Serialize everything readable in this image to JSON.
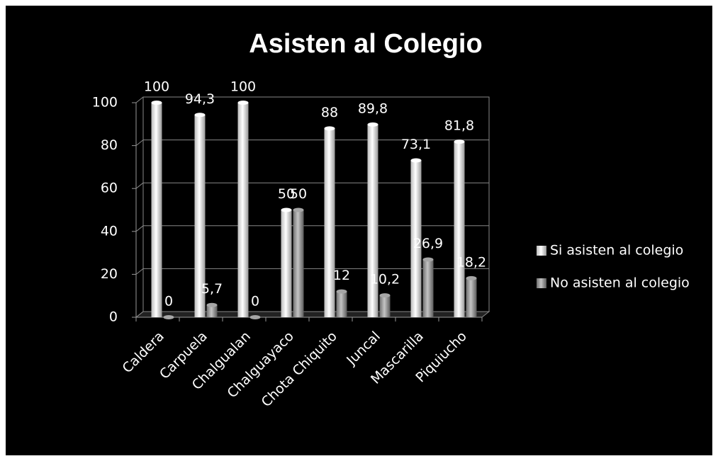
{
  "chart_data": {
    "type": "bar",
    "title": "Asisten al Colegio",
    "categories": [
      "Caldera",
      "Carpuela",
      "Chalgualan",
      "Chalguayaco",
      "Chota Chiquito",
      "Juncal",
      "Mascarilla",
      "Piquiucho"
    ],
    "series": [
      {
        "name": "Si asisten al colegio",
        "color": "#ffffff",
        "values": [
          100,
          94.3,
          100,
          50,
          88,
          89.8,
          73.1,
          81.8
        ],
        "value_labels": [
          "100",
          "94,3",
          "100",
          "50",
          "88",
          "89,8",
          "73,1",
          "81,8"
        ]
      },
      {
        "name": "No asisten al colegio",
        "color": "#a6a6a6",
        "values": [
          0,
          5.7,
          0,
          50,
          12,
          10.2,
          26.9,
          18.2
        ],
        "value_labels": [
          "0",
          "5,7",
          "0",
          "50",
          "12",
          "10,2",
          "26,9",
          "18,2"
        ]
      }
    ],
    "ylim": [
      0,
      100
    ],
    "yticks": [
      0,
      20,
      40,
      60,
      80,
      100
    ],
    "grid": true,
    "legend": "right"
  }
}
